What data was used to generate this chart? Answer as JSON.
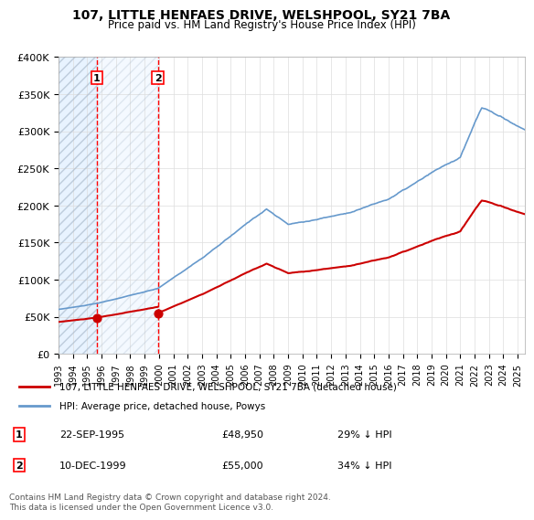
{
  "title": "107, LITTLE HENFAES DRIVE, WELSHPOOL, SY21 7BA",
  "subtitle": "Price paid vs. HM Land Registry's House Price Index (HPI)",
  "property_label": "107, LITTLE HENFAES DRIVE, WELSHPOOL, SY21 7BA (detached house)",
  "hpi_label": "HPI: Average price, detached house, Powys",
  "sale1_date": "22-SEP-1995",
  "sale1_price": 48950,
  "sale1_note": "29% ↓ HPI",
  "sale2_date": "10-DEC-1999",
  "sale2_price": 55000,
  "sale2_note": "34% ↓ HPI",
  "footer": "Contains HM Land Registry data © Crown copyright and database right 2024.\nThis data is licensed under the Open Government Licence v3.0.",
  "property_color": "#cc0000",
  "hpi_color": "#6699cc",
  "hatch_color": "#ccddee",
  "ylim": [
    0,
    400000
  ],
  "yticks": [
    0,
    50000,
    100000,
    150000,
    200000,
    250000,
    300000,
    350000,
    400000
  ],
  "ytick_labels": [
    "£0",
    "£50K",
    "£100K",
    "£150K",
    "£200K",
    "£250K",
    "£300K",
    "£350K",
    "£400K"
  ],
  "xlim_start": 1993.0,
  "xlim_end": 2025.5,
  "xticks": [
    1993,
    1994,
    1995,
    1996,
    1997,
    1998,
    1999,
    2000,
    2001,
    2002,
    2003,
    2004,
    2005,
    2006,
    2007,
    2008,
    2009,
    2010,
    2011,
    2012,
    2013,
    2014,
    2015,
    2016,
    2017,
    2018,
    2019,
    2020,
    2021,
    2022,
    2023,
    2024,
    2025
  ]
}
